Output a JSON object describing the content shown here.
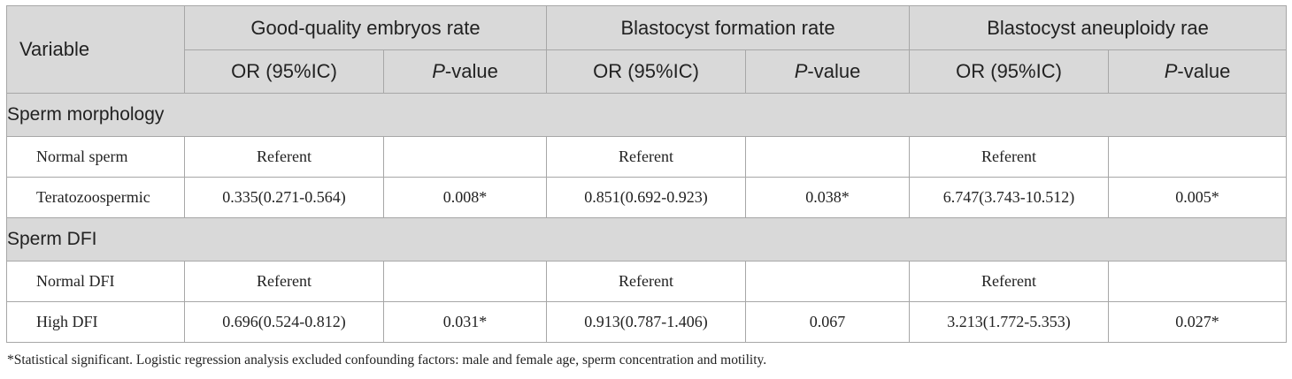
{
  "table": {
    "header": {
      "variable": "Variable",
      "groups": [
        "Good-quality embryos rate",
        "Blastocyst formation rate",
        "Blastocyst aneuploidy rae"
      ],
      "sub": {
        "or": "OR (95%IC)",
        "p_italic": "P",
        "p_rest": "-value"
      }
    },
    "sections": [
      {
        "title": "Sperm morphology",
        "rows": [
          {
            "label": "Normal sperm",
            "cells": [
              "Referent",
              "",
              "Referent",
              "",
              "Referent",
              ""
            ]
          },
          {
            "label": "Teratozoospermic",
            "cells": [
              "0.335(0.271-0.564)",
              "0.008*",
              "0.851(0.692-0.923)",
              "0.038*",
              "6.747(3.743-10.512)",
              "0.005*"
            ]
          }
        ]
      },
      {
        "title": "Sperm DFI",
        "rows": [
          {
            "label": "Normal DFI",
            "cells": [
              "Referent",
              "",
              "Referent",
              "",
              "Referent",
              ""
            ]
          },
          {
            "label": "High DFI",
            "cells": [
              "0.696(0.524-0.812)",
              "0.031*",
              "0.913(0.787-1.406)",
              "0.067",
              "3.213(1.772-5.353)",
              "0.027*"
            ]
          }
        ]
      }
    ]
  },
  "footnote": "*Statistical significant. Logistic regression analysis excluded confounding factors: male and female age, sperm concentration and motility."
}
